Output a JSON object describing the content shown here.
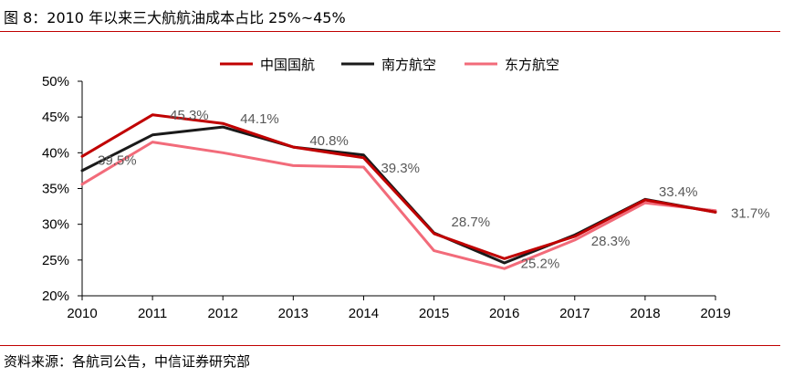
{
  "figure": {
    "title": "图 8：2010 年以来三大航航油成本占比 25%~45%",
    "source": "资料来源：各航司公告，中信证券研究部"
  },
  "chart_data": {
    "type": "line",
    "x": [
      "2010",
      "2011",
      "2012",
      "2013",
      "2014",
      "2015",
      "2016",
      "2017",
      "2018",
      "2019"
    ],
    "ylim": [
      20,
      50
    ],
    "yticks": [
      "20%",
      "25%",
      "30%",
      "35%",
      "40%",
      "45%",
      "50%"
    ],
    "legend_position": "top-center",
    "series": [
      {
        "name": "中国国航",
        "color": "#c00000",
        "values": [
          39.5,
          45.3,
          44.1,
          40.8,
          39.3,
          28.7,
          25.2,
          28.3,
          33.4,
          31.7
        ]
      },
      {
        "name": "南方航空",
        "color": "#1a1a1a",
        "values": [
          37.5,
          42.5,
          43.6,
          40.8,
          39.7,
          28.8,
          24.6,
          28.5,
          33.5,
          31.7
        ]
      },
      {
        "name": "东方航空",
        "color": "#f26b7a",
        "values": [
          35.6,
          41.5,
          40.0,
          38.2,
          38.0,
          26.3,
          23.8,
          27.8,
          33.0,
          31.9
        ]
      }
    ],
    "data_labels": [
      {
        "x_index": 0,
        "text": "39.5%"
      },
      {
        "x_index": 1,
        "text": "45.3%"
      },
      {
        "x_index": 2,
        "text": "44.1%"
      },
      {
        "x_index": 3,
        "text": "40.8%"
      },
      {
        "x_index": 4,
        "text": "39.3%"
      },
      {
        "x_index": 5,
        "text": "28.7%"
      },
      {
        "x_index": 6,
        "text": "25.2%"
      },
      {
        "x_index": 7,
        "text": "28.3%"
      },
      {
        "x_index": 8,
        "text": "33.4%"
      },
      {
        "x_index": 9,
        "text": "31.7%"
      }
    ]
  }
}
